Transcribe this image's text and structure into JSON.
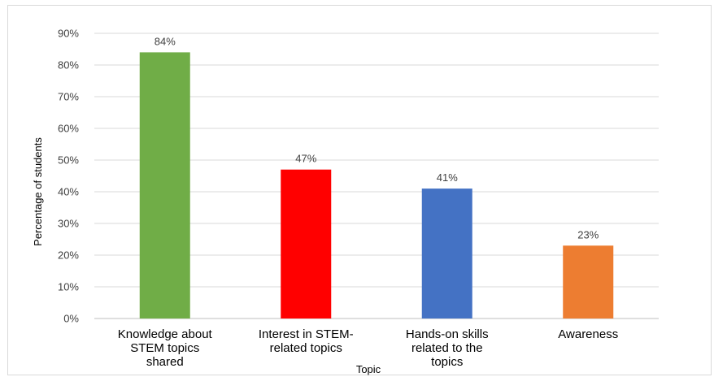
{
  "chart_data": {
    "type": "bar",
    "categories": [
      [
        "Knowledge about",
        "STEM topics",
        "shared"
      ],
      [
        "Interest in STEM-",
        "related topics"
      ],
      [
        "Hands-on skills",
        "related to the",
        "topics"
      ],
      [
        "Awareness"
      ]
    ],
    "values": [
      84,
      47,
      41,
      23
    ],
    "data_labels": [
      "84%",
      "47%",
      "41%",
      "23%"
    ],
    "colors": [
      "#70ad47",
      "#ff0000",
      "#4472c4",
      "#ed7d31"
    ],
    "ylim": [
      0,
      90
    ],
    "yticks": [
      0,
      10,
      20,
      30,
      40,
      50,
      60,
      70,
      80,
      90
    ],
    "ytick_labels": [
      "0%",
      "10%",
      "20%",
      "30%",
      "40%",
      "50%",
      "60%",
      "70%",
      "80%",
      "90%"
    ],
    "xlabel": "Topic",
    "ylabel": "Percentage of students",
    "grid": true
  }
}
